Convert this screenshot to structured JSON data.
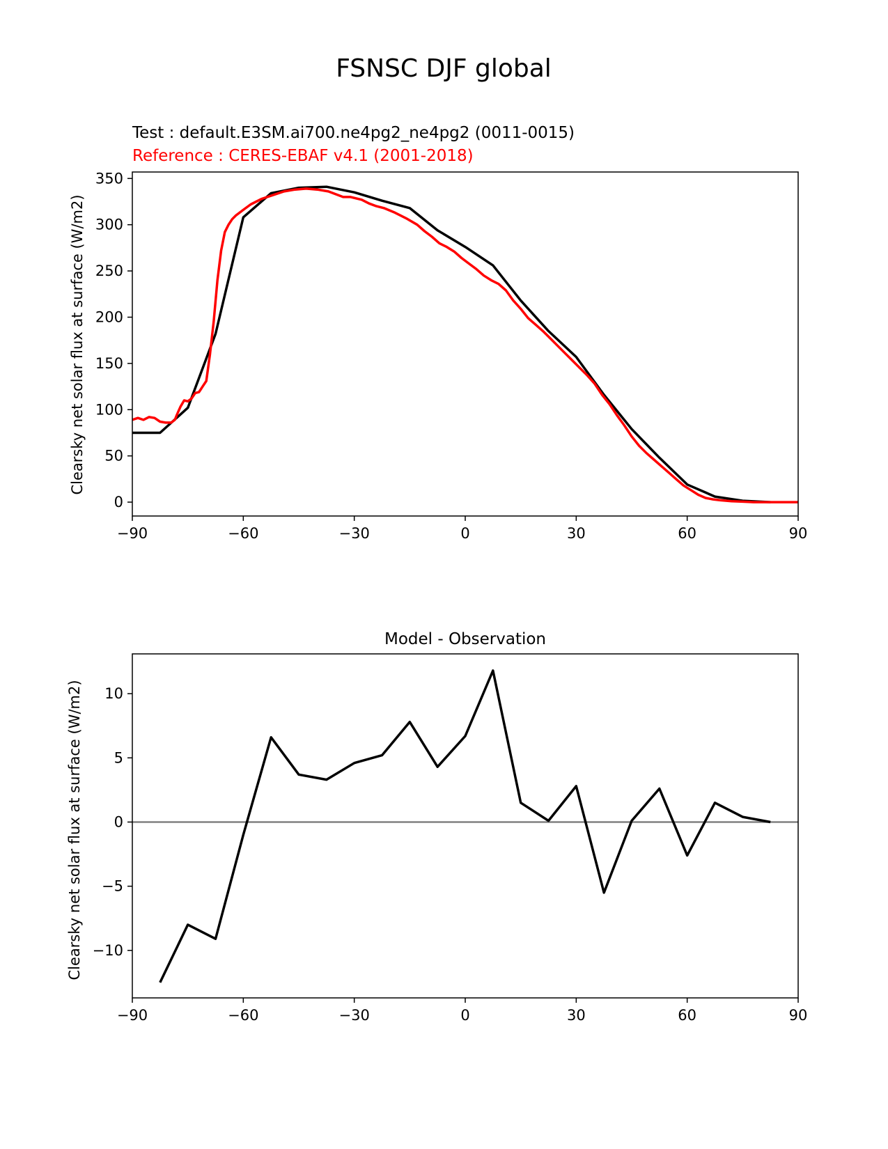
{
  "figure": {
    "title": "FSNSC DJF global"
  },
  "chart_data": [
    {
      "type": "line",
      "title_test": "Test : default.E3SM.ai700.ne4pg2_ne4pg2 (0011-0015)",
      "title_reference": "Reference : CERES-EBAF v4.1 (2001-2018)",
      "xlabel": "",
      "ylabel": "Clearsky net solar flux at surface (W/m2)",
      "xlim": [
        -90,
        90
      ],
      "ylim": [
        -15,
        357
      ],
      "xticks": [
        -90,
        -60,
        -30,
        0,
        30,
        60,
        90
      ],
      "yticks": [
        0,
        50,
        100,
        150,
        200,
        250,
        300,
        350
      ],
      "grid": false,
      "series": [
        {
          "color": "#000000",
          "x": [
            -90,
            -82.5,
            -75,
            -67.5,
            -60,
            -52.5,
            -45,
            -37.5,
            -30,
            -22.5,
            -15,
            -7.5,
            0,
            7.5,
            15,
            22.5,
            30,
            37.5,
            45,
            52.5,
            60,
            67.5,
            75,
            82.5
          ],
          "y": [
            75,
            75,
            102,
            182,
            308,
            334,
            340,
            341,
            335,
            326,
            318,
            294,
            276,
            256,
            218,
            185,
            157,
            116,
            79,
            48,
            19,
            6,
            1.5,
            0
          ]
        },
        {
          "color": "#ff0000",
          "x": [
            -90,
            -88.5,
            -87,
            -85.5,
            -84,
            -82.5,
            -81,
            -79.5,
            -78.5,
            -78,
            -77,
            -76,
            -75,
            -74,
            -73,
            -72,
            -71.5,
            -71,
            -70,
            -69,
            -68,
            -67,
            -66,
            -65,
            -64,
            -63,
            -62,
            -61,
            -60,
            -58,
            -55,
            -52,
            -49,
            -46,
            -43,
            -40,
            -37,
            -35,
            -33,
            -31,
            -28,
            -26,
            -24,
            -22,
            -19,
            -16,
            -13,
            -11,
            -9,
            -7,
            -5,
            -3,
            -1,
            1,
            3,
            5,
            7,
            9,
            11,
            13,
            15,
            17,
            19,
            21,
            23,
            25,
            27,
            29,
            31,
            33,
            35,
            37,
            39,
            41,
            43,
            45,
            47,
            49,
            51,
            53,
            55,
            57,
            59,
            61,
            63,
            65,
            67,
            69,
            72,
            75,
            78,
            81,
            84,
            87,
            90
          ],
          "y": [
            89,
            91,
            89,
            92,
            91,
            87,
            86,
            86,
            89,
            94,
            103,
            110,
            109,
            112,
            118,
            119,
            122,
            125,
            131,
            160,
            195,
            240,
            272,
            292,
            300,
            306,
            310,
            313,
            316,
            322,
            328,
            332,
            336,
            338,
            339,
            338,
            336,
            333,
            330,
            330,
            327,
            323,
            320,
            318,
            313,
            307,
            300,
            293,
            287,
            280,
            276,
            271,
            264,
            258,
            252,
            245,
            240,
            236,
            229,
            218,
            209,
            199,
            192,
            185,
            177,
            169,
            161,
            153,
            145,
            137,
            128,
            116,
            106,
            94,
            83,
            71,
            61,
            53,
            46,
            39,
            32,
            25,
            18,
            13,
            8,
            4.5,
            3,
            2,
            1,
            0.5,
            0,
            0,
            0,
            0,
            0
          ]
        }
      ]
    },
    {
      "type": "line",
      "title": "Model - Observation",
      "xlabel": "",
      "ylabel": "Clearsky net solar flux at surface (W/m2)",
      "xlim": [
        -90,
        90
      ],
      "ylim": [
        -13.7,
        13.1
      ],
      "xticks": [
        -90,
        -60,
        -30,
        0,
        30,
        60,
        90
      ],
      "yticks": [
        -10,
        -5,
        0,
        5,
        10
      ],
      "grid": false,
      "zero_line_color": "#808080",
      "series": [
        {
          "color": "#000000",
          "x": [
            -82.5,
            -75,
            -67.5,
            -60,
            -52.5,
            -45,
            -37.5,
            -30,
            -22.5,
            -15,
            -7.5,
            0,
            7.5,
            15,
            22.5,
            30,
            37.5,
            45,
            52.5,
            60,
            67.5,
            75,
            82.5
          ],
          "y": [
            -12.5,
            -8.0,
            -9.1,
            -1.0,
            6.6,
            3.7,
            3.3,
            4.6,
            5.2,
            7.8,
            4.3,
            6.7,
            11.8,
            1.5,
            0.1,
            2.8,
            -5.5,
            0.1,
            2.6,
            -2.6,
            1.5,
            0.4,
            0.0
          ]
        }
      ]
    }
  ]
}
